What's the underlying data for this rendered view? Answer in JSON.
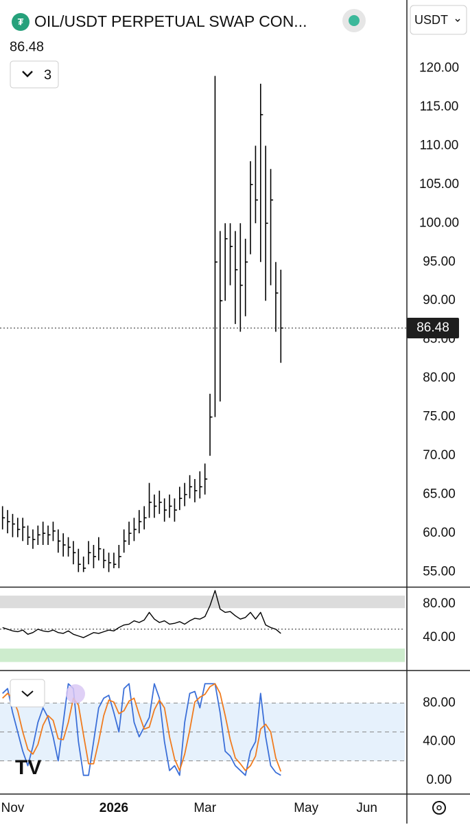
{
  "header": {
    "title": "OIL/USDT PERPETUAL SWAP CON...",
    "indicator_count": 3,
    "currency": "USDT"
  },
  "chart_data": [
    {
      "type": "hlc",
      "last_value": 86.48,
      "color": "#000000",
      "categories": [
        null,
        null,
        "Nov",
        null,
        null,
        null,
        null,
        null,
        null,
        null,
        null,
        null,
        null,
        null,
        null,
        null,
        null,
        null,
        null,
        null,
        null,
        null,
        "2026",
        null,
        null,
        null,
        null,
        null,
        null,
        null,
        null,
        null,
        null,
        null,
        null,
        null,
        null,
        null,
        null,
        null,
        "Mar",
        null,
        null,
        null,
        null,
        null,
        null,
        null,
        null,
        null,
        null,
        null,
        null,
        null,
        null,
        null,
        null,
        null,
        null,
        null,
        "May",
        null,
        null,
        null,
        null,
        null,
        null,
        null,
        null,
        null,
        null,
        null,
        "Jun",
        null,
        null,
        null,
        null,
        null,
        null,
        null
      ],
      "high": [
        63.5,
        63,
        62.5,
        62,
        62,
        61,
        60.5,
        61,
        61.5,
        61,
        61.5,
        60.5,
        60,
        59.5,
        59,
        58,
        57,
        59,
        58.5,
        59.5,
        58,
        57.5,
        57.5,
        58.5,
        60.5,
        61.5,
        62,
        63,
        63.5,
        66.5,
        65,
        65.5,
        64.5,
        65,
        64.5,
        66,
        66.5,
        67.5,
        67,
        68,
        69,
        78,
        119,
        99,
        100,
        100,
        99,
        100,
        98,
        108,
        110,
        118,
        110,
        107,
        95,
        94,
        null,
        null,
        null,
        null,
        null,
        null,
        null,
        null,
        null,
        null,
        null,
        null,
        null,
        null,
        null,
        null,
        null,
        null,
        null,
        null,
        null,
        null,
        null,
        null
      ],
      "low": [
        60.5,
        60,
        59.5,
        59.5,
        59,
        58.5,
        58,
        58.5,
        58.5,
        58.5,
        59,
        57.5,
        57,
        57,
        56,
        55,
        55,
        56,
        55.5,
        56.5,
        55.5,
        55,
        55.5,
        55.5,
        57.5,
        58.5,
        59,
        60,
        60.5,
        62,
        62,
        62.5,
        61.5,
        62,
        61.5,
        63,
        63.5,
        64.5,
        64,
        64.5,
        65,
        70,
        75,
        77,
        90,
        92,
        87,
        86,
        88,
        96,
        100,
        95,
        90,
        92,
        86,
        82,
        null,
        null,
        null,
        null,
        null,
        null,
        null,
        null,
        null,
        null,
        null,
        null,
        null,
        null,
        null,
        null,
        null,
        null,
        null,
        null,
        null,
        null,
        null,
        null
      ],
      "close": [
        62,
        61.5,
        61.2,
        60.5,
        60.8,
        59.5,
        59.2,
        59.8,
        60,
        59.8,
        60.3,
        59,
        58.5,
        58.2,
        57.5,
        56,
        55.5,
        57.5,
        57,
        58,
        56.5,
        56.2,
        56,
        57,
        59,
        60,
        60.5,
        61.5,
        62,
        64,
        63.5,
        64,
        63,
        63.5,
        63,
        64.5,
        65,
        66,
        65.5,
        66,
        67,
        75,
        95,
        90,
        98,
        97,
        94,
        92,
        95,
        105,
        103,
        114,
        100,
        103,
        91,
        86.48,
        null,
        null,
        null,
        null,
        null,
        null,
        null,
        null,
        null,
        null,
        null,
        null,
        null,
        null,
        null,
        null,
        null,
        null,
        null,
        null,
        null,
        null,
        null,
        null
      ],
      "ylim": [
        53.1,
        128.8
      ],
      "yticks": [
        {
          "value": 55,
          "label": "55.00"
        },
        {
          "value": 60,
          "label": "60.00"
        },
        {
          "value": 65,
          "label": "65.00"
        },
        {
          "value": 70,
          "label": "70.00"
        },
        {
          "value": 75,
          "label": "75.00"
        },
        {
          "value": 80,
          "label": "80.00"
        },
        {
          "value": 85,
          "label": "85.00"
        },
        {
          "value": 90,
          "label": "90.00"
        },
        {
          "value": 95,
          "label": "95.00"
        },
        {
          "value": 100,
          "label": "100.00"
        },
        {
          "value": 105,
          "label": "105.00"
        },
        {
          "value": 110,
          "label": "110.00"
        },
        {
          "value": 115,
          "label": "115.00"
        },
        {
          "value": 120,
          "label": "120.00"
        }
      ]
    },
    {
      "type": "line",
      "ylim": [
        2.5,
        98
      ],
      "yticks": [
        {
          "value": 40,
          "label": "40.00"
        },
        {
          "value": 80,
          "label": "80.00"
        }
      ],
      "bands": [
        {
          "range": [
            75,
            90
          ],
          "color": "#dcdcdc"
        },
        {
          "range": [
            11,
            27
          ],
          "color": "#cdeccd"
        }
      ],
      "hlines": [
        50
      ],
      "series": [
        {
          "color": "#000000",
          "values": [
            52,
            50,
            48,
            47,
            49,
            44,
            46,
            50,
            48,
            47,
            49,
            46,
            45,
            48,
            44,
            42,
            40,
            43,
            46,
            45,
            47,
            49,
            48,
            52,
            55,
            56,
            60,
            58,
            61,
            70,
            62,
            58,
            60,
            56,
            57,
            59,
            56,
            60,
            63,
            62,
            65,
            78,
            96,
            74,
            70,
            71,
            66,
            62,
            64,
            70,
            62,
            70,
            55,
            52,
            50,
            45,
            null,
            null,
            null,
            null,
            null,
            null,
            null,
            null,
            null,
            null,
            null,
            null,
            null,
            null,
            null,
            null,
            null,
            null,
            null,
            null,
            null,
            null,
            null,
            null
          ]
        }
      ]
    },
    {
      "type": "line",
      "ylim": [
        -13,
        113
      ],
      "yticks": [
        {
          "value": 0,
          "label": "0.00"
        },
        {
          "value": 40,
          "label": "40.00"
        },
        {
          "value": 80,
          "label": "80.00"
        }
      ],
      "bands": [
        {
          "range": [
            20,
            80
          ],
          "color": "#e6f1fc"
        }
      ],
      "hlines": [
        20,
        50,
        80
      ],
      "series": [
        {
          "color": "#3b6fd8",
          "values": [
            90,
            95,
            70,
            50,
            30,
            15,
            35,
            60,
            75,
            65,
            45,
            20,
            60,
            100,
            95,
            40,
            5,
            5,
            40,
            75,
            85,
            88,
            70,
            50,
            95,
            100,
            60,
            45,
            55,
            65,
            100,
            85,
            40,
            10,
            15,
            5,
            60,
            90,
            92,
            75,
            100,
            100,
            100,
            70,
            30,
            25,
            15,
            10,
            5,
            30,
            40,
            90,
            45,
            15,
            8,
            5,
            null,
            null,
            null,
            null,
            null,
            null,
            null,
            null,
            null,
            null,
            null,
            null,
            null,
            null,
            null,
            null,
            null,
            null,
            null,
            null,
            null,
            null,
            null,
            null
          ]
        },
        {
          "color": "#f07b1e",
          "values": [
            85,
            90,
            85,
            72,
            50,
            32,
            27,
            37,
            57,
            67,
            62,
            43,
            42,
            60,
            85,
            78,
            47,
            17,
            17,
            40,
            67,
            83,
            81,
            69,
            72,
            82,
            85,
            68,
            53,
            55,
            73,
            83,
            75,
            45,
            22,
            10,
            27,
            52,
            81,
            86,
            89,
            97,
            100,
            90,
            67,
            42,
            23,
            17,
            10,
            15,
            25,
            53,
            58,
            50,
            23,
            9,
            null,
            null,
            null,
            null,
            null,
            null,
            null,
            null,
            null,
            null,
            null,
            null,
            null,
            null,
            null,
            null,
            null,
            null,
            null,
            null,
            null,
            null,
            null,
            null
          ]
        }
      ]
    }
  ]
}
